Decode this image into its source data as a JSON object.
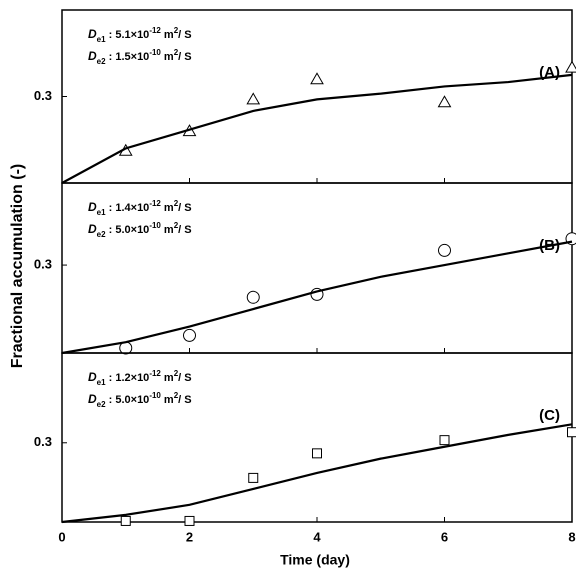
{
  "chart_data": [
    {
      "type": "line",
      "ylabel": "Fractional accumulation (-)",
      "panel_label": "(A)",
      "annotations": [
        [
          {
            "text": "D",
            "style": "italic"
          },
          {
            "text": "e1",
            "style": "sub"
          },
          {
            "text": " : 5.1×10",
            "style": "normal"
          },
          {
            "text": "-12",
            "style": "sup"
          },
          {
            "text": " m",
            "style": "normal"
          },
          {
            "text": "2",
            "style": "sup"
          },
          {
            "text": "/ S",
            "style": "normal"
          }
        ],
        [
          {
            "text": "D",
            "style": "italic"
          },
          {
            "text": "e2",
            "style": "sub"
          },
          {
            "text": " : 1.5×10",
            "style": "normal"
          },
          {
            "text": "-10",
            "style": "sup"
          },
          {
            "text": " m",
            "style": "normal"
          },
          {
            "text": "2",
            "style": "sup"
          },
          {
            "text": "/ S",
            "style": "normal"
          }
        ]
      ],
      "xlim": [
        0,
        8
      ],
      "ylim": [
        0,
        0.6
      ],
      "yticks": [
        0.3
      ],
      "series": [
        {
          "type": "scatter",
          "marker": "triangle",
          "color": "#000000",
          "x": [
            1,
            2,
            3,
            4,
            6,
            8
          ],
          "values": [
            0.112,
            0.18,
            0.29,
            0.36,
            0.28,
            0.4
          ]
        },
        {
          "type": "line",
          "color": "#000000",
          "x": [
            0,
            1,
            2,
            3,
            4,
            5,
            6,
            7,
            8
          ],
          "values": [
            0,
            0.12,
            0.185,
            0.25,
            0.29,
            0.31,
            0.335,
            0.35,
            0.375
          ]
        }
      ]
    },
    {
      "type": "line",
      "panel_label": "(B)",
      "annotations": [
        [
          {
            "text": "D",
            "style": "italic"
          },
          {
            "text": "e1",
            "style": "sub"
          },
          {
            "text": " : 1.4×10",
            "style": "normal"
          },
          {
            "text": "-12",
            "style": "sup"
          },
          {
            "text": " m",
            "style": "normal"
          },
          {
            "text": "2",
            "style": "sup"
          },
          {
            "text": "/ S",
            "style": "normal"
          }
        ],
        [
          {
            "text": "D",
            "style": "italic"
          },
          {
            "text": "e2",
            "style": "sub"
          },
          {
            "text": " : 5.0×10",
            "style": "normal"
          },
          {
            "text": "-10",
            "style": "sup"
          },
          {
            "text": " m",
            "style": "normal"
          },
          {
            "text": "2",
            "style": "sup"
          },
          {
            "text": "/ S",
            "style": "normal"
          }
        ]
      ],
      "xlim": [
        0,
        8
      ],
      "ylim": [
        0,
        0.58
      ],
      "yticks": [
        0.3
      ],
      "series": [
        {
          "type": "scatter",
          "marker": "circle",
          "color": "#000000",
          "x": [
            1,
            2,
            3,
            4,
            6,
            8
          ],
          "values": [
            0.017,
            0.06,
            0.19,
            0.2,
            0.35,
            0.39
          ]
        },
        {
          "type": "line",
          "color": "#000000",
          "x": [
            0,
            1,
            2,
            3,
            4,
            5,
            6,
            7,
            8
          ],
          "values": [
            0,
            0.037,
            0.09,
            0.15,
            0.21,
            0.26,
            0.3,
            0.34,
            0.38
          ]
        }
      ]
    },
    {
      "type": "line",
      "panel_label": "(C)",
      "xlabel": "Time (day)",
      "annotations": [
        [
          {
            "text": "D",
            "style": "italic"
          },
          {
            "text": "e1",
            "style": "sub"
          },
          {
            "text": " : 1.2×10",
            "style": "normal"
          },
          {
            "text": "-12",
            "style": "sup"
          },
          {
            "text": " m",
            "style": "normal"
          },
          {
            "text": "2",
            "style": "sup"
          },
          {
            "text": "/ S",
            "style": "normal"
          }
        ],
        [
          {
            "text": "D",
            "style": "italic"
          },
          {
            "text": "e2",
            "style": "sub"
          },
          {
            "text": " : 5.0×10",
            "style": "normal"
          },
          {
            "text": "-10",
            "style": "sup"
          },
          {
            "text": " m",
            "style": "normal"
          },
          {
            "text": "2",
            "style": "sup"
          },
          {
            "text": "/ S",
            "style": "normal"
          }
        ]
      ],
      "xlim": [
        0,
        8
      ],
      "xticks": [
        0,
        2,
        4,
        6,
        8
      ],
      "ylim": [
        0,
        0.64
      ],
      "yticks": [
        0.3
      ],
      "series": [
        {
          "type": "scatter",
          "marker": "square",
          "color": "#000000",
          "x": [
            1,
            2,
            3,
            4,
            6,
            8
          ],
          "values": [
            0.004,
            0.004,
            0.167,
            0.26,
            0.31,
            0.34
          ]
        },
        {
          "type": "line",
          "color": "#000000",
          "x": [
            0,
            1,
            2,
            3,
            4,
            5,
            6,
            7,
            8
          ],
          "values": [
            0,
            0.027,
            0.065,
            0.125,
            0.186,
            0.24,
            0.285,
            0.33,
            0.37
          ]
        }
      ]
    }
  ]
}
